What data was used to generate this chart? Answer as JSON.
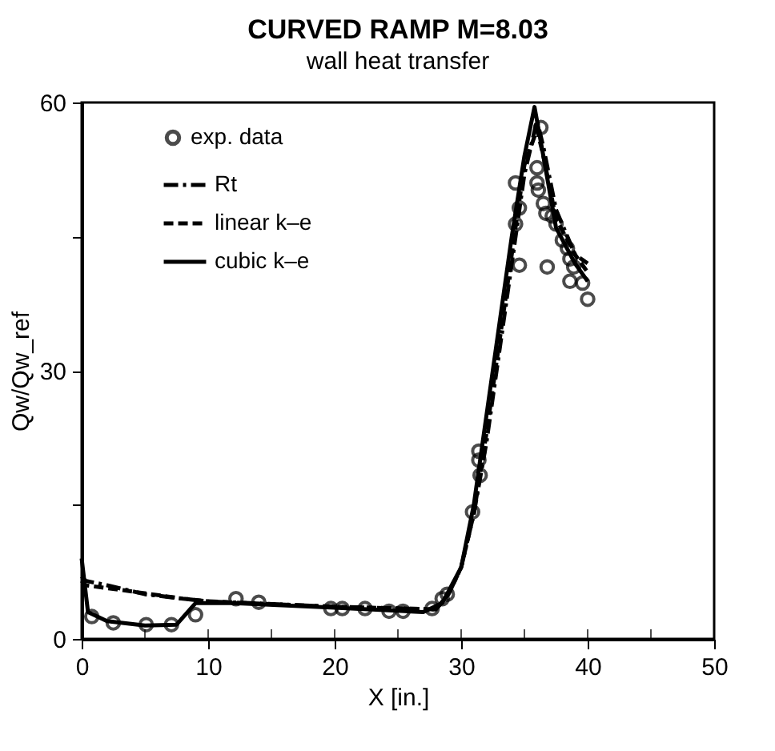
{
  "chart_data": {
    "type": "line",
    "title": "CURVED RAMP  M=8.03",
    "subtitle": "wall heat transfer",
    "xlabel": "X [in.]",
    "ylabel": "Qw/Qw_ref",
    "xlim": [
      0,
      50
    ],
    "ylim": [
      0,
      60
    ],
    "xticks": [
      0,
      {
        "value": 5,
        "label": null
      },
      10,
      {
        "value": 15,
        "label": null
      },
      20,
      {
        "value": 25,
        "label": null
      },
      30,
      {
        "value": 35,
        "label": null
      },
      40,
      {
        "value": 45,
        "label": null
      },
      50
    ],
    "yticks": [
      0,
      {
        "value": 15,
        "label": null
      },
      30,
      {
        "value": 45,
        "label": null
      },
      60
    ],
    "grid": false,
    "legend": "top left",
    "series": [
      {
        "name": "exp. data",
        "type": "scatter",
        "marker": "circle",
        "color": "#000000",
        "x": [
          0.8,
          2.5,
          5.1,
          7.1,
          9,
          12.2,
          14,
          19.7,
          20.6,
          22.4,
          24.3,
          25.4,
          27.7,
          28.5,
          28.9,
          30.9,
          31.4,
          31.4,
          31.5,
          34.3,
          34.3,
          34.6,
          34.6,
          36,
          36,
          36.1,
          36.3,
          36.5,
          36.7,
          36.8,
          37.2,
          37.5,
          38,
          38.4,
          38.6,
          38.6,
          38.9,
          39.6,
          40
        ],
        "values": [
          2.5,
          1.8,
          1.6,
          1.6,
          2.7,
          4.5,
          4.1,
          3.4,
          3.4,
          3.4,
          3.1,
          3.1,
          3.4,
          4.5,
          5,
          14.2,
          21,
          20,
          18.3,
          51,
          46.4,
          48.2,
          41.8,
          52.7,
          51,
          50.2,
          57.2,
          48.7,
          47.6,
          41.6,
          47.3,
          46.4,
          44.6,
          43.7,
          42.5,
          40,
          41.6,
          39.8,
          38
        ]
      },
      {
        "name": "Rt",
        "type": "line",
        "line_style": "dashdot",
        "color": "#000000",
        "x": [
          0,
          0.3,
          2,
          5,
          8,
          10,
          20,
          28,
          29,
          30,
          31,
          32,
          33,
          34,
          35,
          36,
          36.5,
          37.5,
          39,
          40
        ],
        "values": [
          7,
          6.5,
          6,
          5,
          4.5,
          4.2,
          3.6,
          3.3,
          5,
          8,
          14,
          22,
          32,
          42,
          52,
          58,
          55,
          48,
          43,
          42
        ]
      },
      {
        "name": "linear k–e",
        "type": "line",
        "line_style": "dashed",
        "color": "#000000",
        "x": [
          0,
          0.3,
          3,
          8,
          10,
          20,
          28,
          29,
          30,
          31,
          32,
          33,
          34,
          35,
          36,
          36.5,
          37.5,
          39,
          40
        ],
        "values": [
          6.5,
          6,
          5.5,
          4.5,
          4.2,
          3.6,
          3.3,
          5,
          8,
          14,
          23,
          33,
          43,
          53,
          57,
          54,
          47,
          43,
          41
        ]
      },
      {
        "name": "cubic k–e",
        "type": "line",
        "line_style": "solid",
        "color": "#000000",
        "x": [
          0,
          0.5,
          2,
          5,
          7.5,
          9,
          12,
          20,
          27,
          28.5,
          30,
          31,
          32,
          33,
          34,
          35,
          35.8,
          36.5,
          37.5,
          39,
          40
        ],
        "values": [
          9,
          3,
          2,
          1.5,
          1.6,
          4,
          4,
          3.5,
          3,
          4,
          8,
          15,
          25,
          35,
          45,
          54,
          59.5,
          54,
          46,
          42,
          40
        ]
      }
    ]
  }
}
